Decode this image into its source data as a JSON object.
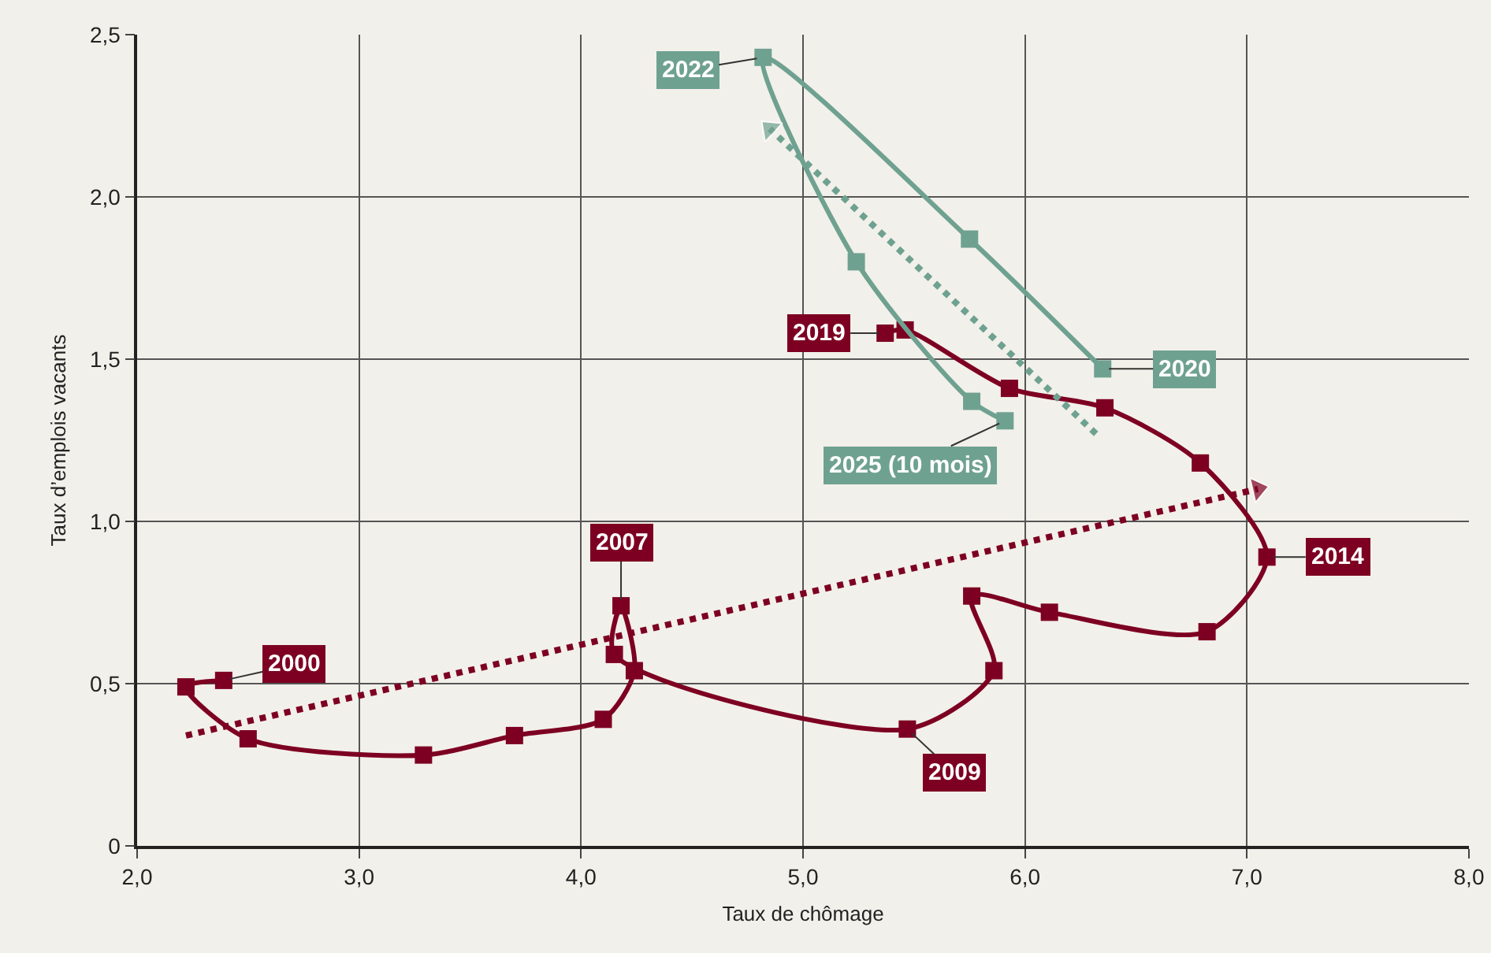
{
  "chart_data": {
    "type": "line",
    "xlabel": "Taux de chômage",
    "ylabel": "Taux d’emplois vacants",
    "xlim": [
      2,
      8
    ],
    "ylim": [
      0,
      2.5
    ],
    "xticks": [
      {
        "value": 2,
        "label": "2,0"
      },
      {
        "value": 3,
        "label": "3,0"
      },
      {
        "value": 4,
        "label": "4,0"
      },
      {
        "value": 5,
        "label": "5,0"
      },
      {
        "value": 6,
        "label": "6,0"
      },
      {
        "value": 7,
        "label": "7,0"
      },
      {
        "value": 8,
        "label": "8,0"
      }
    ],
    "yticks": [
      {
        "value": 0,
        "label": "0"
      },
      {
        "value": 0.5,
        "label": "0,5"
      },
      {
        "value": 1,
        "label": "1,0"
      },
      {
        "value": 1.5,
        "label": "1,5"
      },
      {
        "value": 2,
        "label": "2,0"
      },
      {
        "value": 2.5,
        "label": "2,5"
      }
    ],
    "grid": true,
    "series": [
      {
        "color": "#7d0022",
        "marker": "square",
        "line_style": "solid",
        "x": [
          2.39,
          2.22,
          2.5,
          3.29,
          3.7,
          4.1,
          4.24,
          4.18,
          4.15,
          5.47,
          5.86,
          5.76,
          6.11,
          6.82,
          7.09,
          6.79,
          6.36,
          5.93,
          5.46,
          5.37
        ],
        "values": [
          0.51,
          0.49,
          0.33,
          0.28,
          0.34,
          0.39,
          0.54,
          0.74,
          0.59,
          0.36,
          0.54,
          0.77,
          0.72,
          0.66,
          0.89,
          1.18,
          1.35,
          1.41,
          1.59,
          1.58
        ]
      },
      {
        "color": "#6fa191",
        "marker": "square",
        "line_style": "solid",
        "x": [
          6.35,
          5.75,
          4.82,
          5.24,
          5.76,
          5.91
        ],
        "values": [
          1.47,
          1.87,
          2.43,
          1.8,
          1.37,
          1.31
        ]
      },
      {
        "color": "#7d0022",
        "marker": "triangle",
        "line_style": "dotted",
        "x": [
          2.22,
          7.05
        ],
        "values": [
          0.34,
          1.1
        ]
      },
      {
        "color": "#6fa191",
        "marker": "triangle",
        "line_style": "dotted",
        "x": [
          6.32,
          4.85
        ],
        "values": [
          1.27,
          2.21
        ]
      }
    ],
    "annotations": [
      {
        "text": "2000",
        "x": 2.39,
        "y": 0.51
      },
      {
        "text": "2007",
        "x": 4.18,
        "y": 0.74
      },
      {
        "text": "2009",
        "x": 5.47,
        "y": 0.36
      },
      {
        "text": "2014",
        "x": 7.09,
        "y": 0.89
      },
      {
        "text": "2019",
        "x": 5.37,
        "y": 1.58
      },
      {
        "text": "2020",
        "x": 6.35,
        "y": 1.47
      },
      {
        "text": "2022",
        "x": 4.82,
        "y": 2.43
      },
      {
        "text": "2025 (10 mois)",
        "x": 5.91,
        "y": 1.31
      }
    ]
  }
}
